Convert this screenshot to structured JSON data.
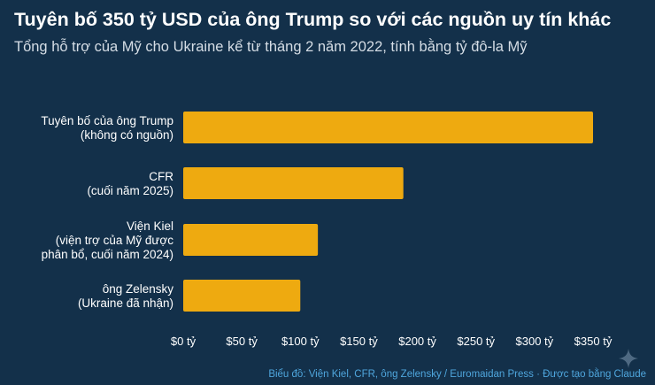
{
  "title": "Tuyên bố 350 tỷ USD của ông Trump so với các nguồn uy tín khác",
  "subtitle": "Tổng hỗ trợ của Mỹ cho Ukraine kể từ tháng 2 năm 2022, tính bằng tỷ đô-la Mỹ",
  "source": "Biểu đồ: Viện Kiel, CFR, ông Zelensky / Euromaidan Press · Được tạo bằng Claude",
  "colors": {
    "background": "#13304a",
    "bar": "#eeaa10",
    "title": "#ffffff",
    "subtitle": "#d5dde5",
    "source": "#4fa6dd"
  },
  "icons": [
    "sparkle-icon"
  ],
  "chart_data": {
    "type": "bar",
    "orientation": "horizontal",
    "categories": [
      [
        "Tuyên bố của ông Trump",
        "(không có nguồn)"
      ],
      [
        "CFR",
        "(cuối năm 2025)"
      ],
      [
        "Viện Kiel",
        "(viện trợ của Mỹ được",
        "phân bổ, cuối năm 2024)"
      ],
      [
        "ông Zelensky",
        "(Ukraine đã nhận)"
      ]
    ],
    "values": [
      350,
      188,
      115,
      100
    ],
    "xlim": [
      0,
      350
    ],
    "xticks": [
      0,
      50,
      100,
      150,
      200,
      250,
      300,
      350
    ],
    "xtick_labels": [
      "$0 tỷ",
      "$50 tỷ",
      "$100 tỷ",
      "$150 tỷ",
      "$200 tỷ",
      "$250 tỷ",
      "$300 tỷ",
      "$350 tỷ"
    ],
    "grid": false,
    "legend": "none"
  }
}
